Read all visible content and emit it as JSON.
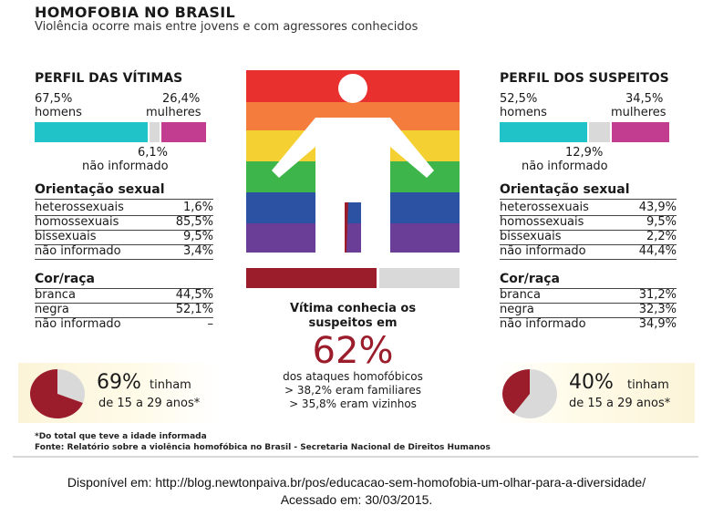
{
  "header": {
    "title": "HOMOFOBIA NO BRASIL",
    "subtitle": "Violência ocorre mais entre jovens e com agressores conhecidos"
  },
  "colors": {
    "teal": "#20c3c8",
    "magenta": "#c23c8f",
    "grey": "#d9d9d9",
    "dark_red": "#9b1c2a",
    "flag": [
      "#e8312f",
      "#f47c3c",
      "#f4d032",
      "#3db54a",
      "#2b52a3",
      "#6a3e97"
    ]
  },
  "victims": {
    "title": "PERFIL DAS VÍTIMAS",
    "men_pct": "67,5%",
    "men_label": "homens",
    "women_pct": "26,4%",
    "women_label": "mulheres",
    "na_pct": "6,1%",
    "na_label": "não informado",
    "orientation_title": "Orientação sexual",
    "orientation": [
      {
        "label": "heterossexuais",
        "value": "1,6%"
      },
      {
        "label": "homossexuais",
        "value": "85,5%"
      },
      {
        "label": "bissexuais",
        "value": "9,5%"
      },
      {
        "label": "não informado",
        "value": "3,4%"
      }
    ],
    "race_title": "Cor/raça",
    "race": [
      {
        "label": "branca",
        "value": "44,5%"
      },
      {
        "label": "negra",
        "value": "52,1%"
      },
      {
        "label": "não informado",
        "value": "–"
      }
    ],
    "age_pct": "69%",
    "age_text1": "tinham",
    "age_text2": "de 15 a 29 anos*"
  },
  "suspects": {
    "title": "PERFIL DOS SUSPEITOS",
    "men_pct": "52,5%",
    "men_label": "homens",
    "women_pct": "34,5%",
    "women_label": "mulheres",
    "na_pct": "12,9%",
    "na_label": "não informado",
    "orientation_title": "Orientação sexual",
    "orientation": [
      {
        "label": "heterossexuais",
        "value": "43,9%"
      },
      {
        "label": "homossexuais",
        "value": "9,5%"
      },
      {
        "label": "bissexuais",
        "value": "2,2%"
      },
      {
        "label": "não informado",
        "value": "44,4%"
      }
    ],
    "race_title": "Cor/raça",
    "race": [
      {
        "label": "branca",
        "value": "31,2%"
      },
      {
        "label": "negra",
        "value": "32,3%"
      },
      {
        "label": "não informado",
        "value": "34,9%"
      }
    ],
    "age_pct": "40%",
    "age_text1": "tinham",
    "age_text2": "de 15 a 29 anos*"
  },
  "center": {
    "line1": "Vítima conhecia os",
    "line2": "suspeitos em",
    "big_pct": "62%",
    "line3": "dos ataques homofóbicos",
    "line4": "> 38,2% eram familiares",
    "line5": "> 35,8% eram vizinhos"
  },
  "footnotes": {
    "note": "*Do total que teve a idade informada",
    "fonte": "Fonte: Relatório sobre a violência homofóbica no Brasil - Secretaria Nacional de Direitos Humanos"
  },
  "source": {
    "line1": "Disponível em: http://blog.newtonpaiva.br/pos/educacao-sem-homofobia-um-olhar-para-a-diversidade/",
    "line2": "Acessado em: 30/03/2015."
  },
  "chart_data": [
    {
      "type": "bar",
      "title": "Perfil das vítimas - sexo",
      "categories": [
        "homens",
        "não informado",
        "mulheres"
      ],
      "values": [
        67.5,
        6.1,
        26.4
      ]
    },
    {
      "type": "bar",
      "title": "Perfil dos suspeitos - sexo",
      "categories": [
        "homens",
        "não informado",
        "mulheres"
      ],
      "values": [
        52.5,
        12.9,
        34.5
      ]
    },
    {
      "type": "pie",
      "title": "Vítimas de 15 a 29 anos",
      "values": [
        69,
        31
      ]
    },
    {
      "type": "pie",
      "title": "Suspeitos de 15 a 29 anos",
      "values": [
        40,
        60
      ]
    },
    {
      "type": "bar",
      "title": "Vítima conhecia os suspeitos",
      "values": [
        62,
        38
      ]
    }
  ]
}
